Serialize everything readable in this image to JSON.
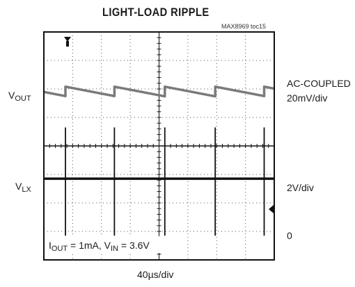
{
  "chart_data": {
    "type": "line",
    "title": "LIGHT-LOAD RIPPLE",
    "figure_id": "MAX8969 toc15",
    "x_scale": "40µs/div",
    "x_divisions": 8,
    "y_divisions": 8,
    "conditions": {
      "iout_symbol": "I",
      "iout_sub": "OUT",
      "iout_val": " = 1mA, ",
      "vin_symbol": "V",
      "vin_sub": "IN",
      "vin_val": " = 3.6V"
    },
    "series": [
      {
        "name_symbol": "V",
        "name_sub": "OUT",
        "coupling": "AC-COUPLED",
        "scale": "20mV/div",
        "color": "#7a7a7a",
        "pattern": "sawtooth",
        "event_times_div": [
          0.75,
          2.45,
          4.2,
          5.95,
          7.65
        ],
        "level_before_jump_div": 5.75,
        "jump_div": 0.33,
        "decay_div_per_div": 0.28
      },
      {
        "name_symbol": "V",
        "name_sub": "LX",
        "scale": "2V/div",
        "zero_label": "0",
        "color": "#111111",
        "pattern": "pulses",
        "baseline_div": 2.85,
        "pulse_times_div": [
          0.75,
          2.45,
          4.2,
          5.95,
          7.65
        ],
        "pulse_high_div": 4.65,
        "pulse_low_div": 0.85
      }
    ]
  }
}
